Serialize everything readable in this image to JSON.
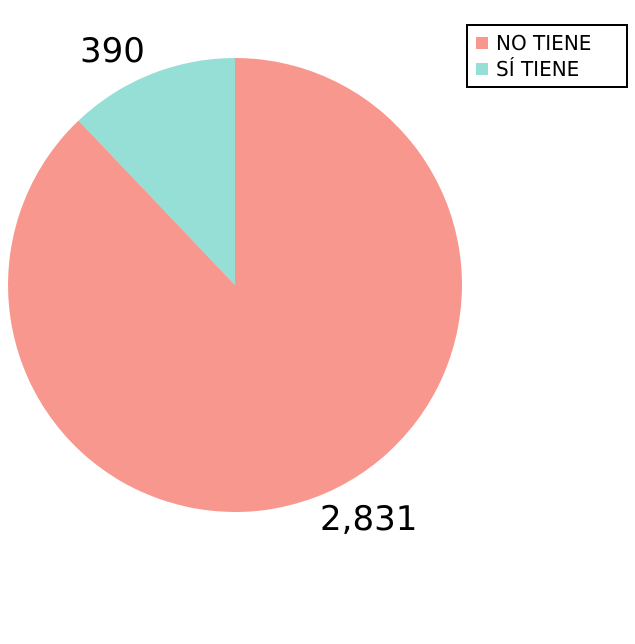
{
  "chart_data": {
    "type": "pie",
    "title": "",
    "categories": [
      "NO TIENE",
      "SÍ TIENE"
    ],
    "values": [
      2831,
      390
    ],
    "value_labels": [
      "2,831",
      "390"
    ],
    "colors": [
      "#f8978e",
      "#96dfd7"
    ],
    "start": "top",
    "direction": "clockwise",
    "legend_position": "top-right"
  }
}
